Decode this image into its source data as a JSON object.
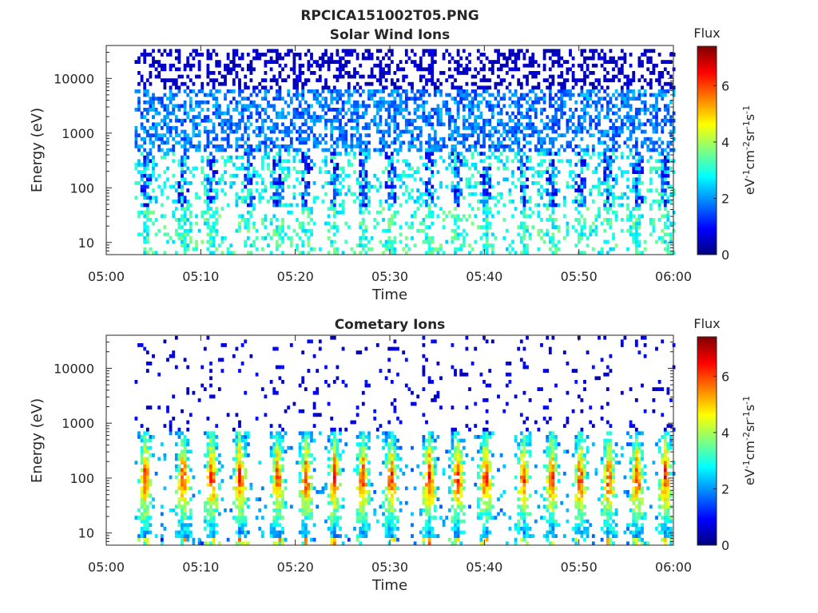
{
  "figure_title": "RPCICA151002T05.PNG",
  "colorbar_palette": [
    "#00007f",
    "#0000ff",
    "#007fff",
    "#00ffff",
    "#7fff7f",
    "#ffff00",
    "#ff7f00",
    "#ff0000",
    "#7f0000"
  ],
  "chart_data": [
    {
      "type": "heatmap",
      "title": "Solar Wind Ions",
      "xlabel": "Time",
      "ylabel": "Energy (eV)",
      "x_ticks": [
        "05:00",
        "05:10",
        "05:20",
        "05:30",
        "05:40",
        "05:50",
        "06:00"
      ],
      "xlim": [
        "05:00",
        "06:00"
      ],
      "y_ticks": [
        10,
        100,
        1000,
        10000
      ],
      "y_tick_labels": [
        "10",
        "100",
        "1000",
        "10000"
      ],
      "yscale": "log",
      "ylim": [
        6,
        40000
      ],
      "data_start": "05:03",
      "colorbar": {
        "label": "Flux",
        "units": "eV",
        "range": [
          0,
          7.4
        ],
        "ticks": [
          0,
          2,
          4,
          6
        ],
        "tick_labels": [
          "0",
          "2",
          "4",
          "6"
        ]
      },
      "ion_bursts": [
        "05:04",
        "05:08",
        "05:11",
        "05:15",
        "05:18",
        "05:21",
        "05:24",
        "05:27",
        "05:30",
        "05:34",
        "05:37",
        "05:40",
        "05:44",
        "05:47",
        "05:50",
        "05:53",
        "05:56",
        "05:59"
      ]
    },
    {
      "type": "heatmap",
      "title": "Cometary Ions",
      "xlabel": "Time",
      "ylabel": "Energy (eV)",
      "x_ticks": [
        "05:00",
        "05:10",
        "05:20",
        "05:30",
        "05:40",
        "05:50",
        "06:00"
      ],
      "xlim": [
        "05:00",
        "06:00"
      ],
      "y_ticks": [
        10,
        100,
        1000,
        10000
      ],
      "y_tick_labels": [
        "10",
        "100",
        "1000",
        "10000"
      ],
      "yscale": "log",
      "ylim": [
        6,
        40000
      ],
      "data_start": "05:03",
      "colorbar": {
        "label": "Flux",
        "units": "eV",
        "range": [
          0,
          7.4
        ],
        "ticks": [
          0,
          2,
          4,
          6
        ],
        "tick_labels": [
          "0",
          "2",
          "4",
          "6"
        ]
      },
      "ion_bursts": [
        "05:04",
        "05:08",
        "05:11",
        "05:14",
        "05:18",
        "05:21",
        "05:24",
        "05:27",
        "05:30",
        "05:34",
        "05:37",
        "05:40",
        "05:44",
        "05:47",
        "05:50",
        "05:53",
        "05:56",
        "05:59"
      ]
    }
  ]
}
